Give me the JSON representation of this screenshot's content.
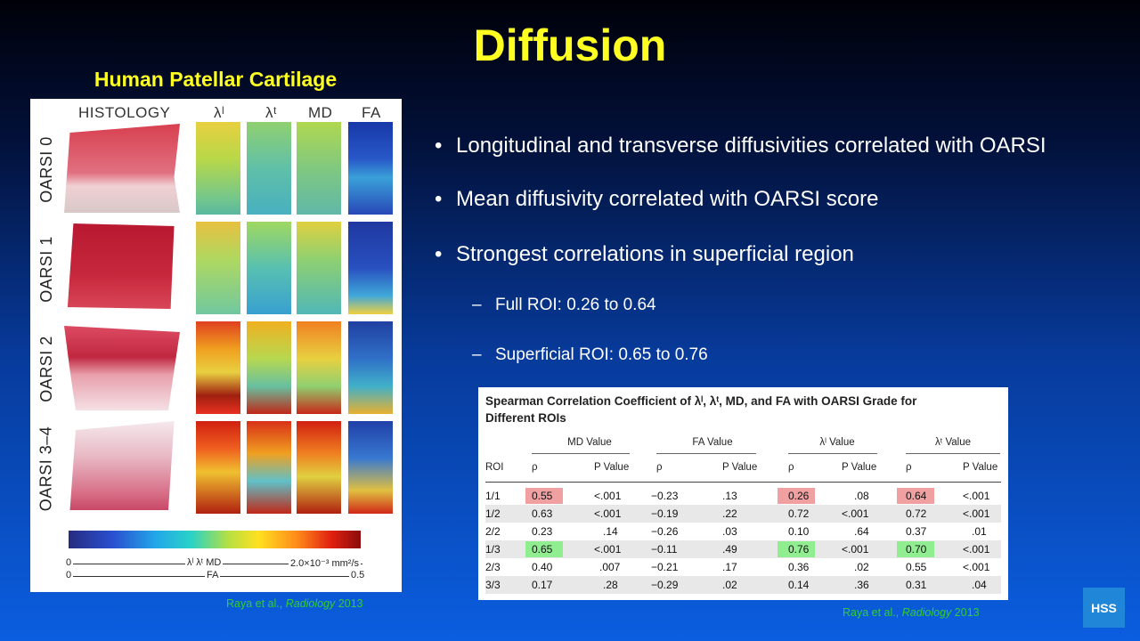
{
  "slide": {
    "title": "Diffusion"
  },
  "figure": {
    "title": "Human Patellar Cartilage",
    "headers": [
      "HISTOLOGY",
      "λˡ",
      "λᵗ",
      "MD",
      "FA"
    ],
    "rows": [
      "OARSI 0",
      "OARSI 1",
      "OARSI 2",
      "OARSI 3–4"
    ],
    "scale1": {
      "start": "0",
      "labels": "λˡ  λᵗ  MD",
      "end": "2.0×10⁻³ mm²/s"
    },
    "scale2": {
      "start": "0",
      "label": "FA",
      "end": "0.5"
    },
    "colors": {
      "cartilage_dark": "#c8283c",
      "cartilage_light": "#e8b8c0"
    }
  },
  "bullets": [
    "Longitudinal and transverse diffusivities correlated with OARSI",
    "Mean diffusivity correlated with OARSI score",
    "Strongest correlations in superficial region"
  ],
  "subbullets": [
    "Full ROI: 0.26 to 0.64",
    "Superficial ROI: 0.65 to 0.76"
  ],
  "table": {
    "title_line1": "Spearman Correlation Coefficient of λˡ, λᵗ, MD, and FA with OARSI Grade for",
    "title_line2": "Different ROIs",
    "groups": [
      "MD Value",
      "FA Value",
      "λˡ Value",
      "λᵗ Value"
    ],
    "roi_header": "ROI",
    "rho": "ρ",
    "p_header": "P Value",
    "rows": [
      {
        "roi": "1/1",
        "v": [
          "0.55",
          "<.001",
          "−0.23",
          ".13",
          "0.26",
          ".08",
          "0.64",
          "<.001"
        ]
      },
      {
        "roi": "1/2",
        "v": [
          "0.63",
          "<.001",
          "−0.19",
          ".22",
          "0.72",
          "<.001",
          "0.72",
          "<.001"
        ]
      },
      {
        "roi": "2/2",
        "v": [
          "0.23",
          ".14",
          "−0.26",
          ".03",
          "0.10",
          ".64",
          "0.37",
          ".01"
        ]
      },
      {
        "roi": "1/3",
        "v": [
          "0.65",
          "<.001",
          "−0.11",
          ".49",
          "0.76",
          "<.001",
          "0.70",
          "<.001"
        ]
      },
      {
        "roi": "2/3",
        "v": [
          "0.40",
          ".007",
          "−0.21",
          ".17",
          "0.36",
          ".02",
          "0.55",
          "<.001"
        ]
      },
      {
        "roi": "3/3",
        "v": [
          "0.17",
          ".28",
          "−0.29",
          ".02",
          "0.14",
          ".36",
          "0.31",
          ".04"
        ]
      }
    ]
  },
  "citation": {
    "authors": "Raya et al.,",
    "journal": "Radiology",
    "year": "2013"
  },
  "logo": "HSS"
}
